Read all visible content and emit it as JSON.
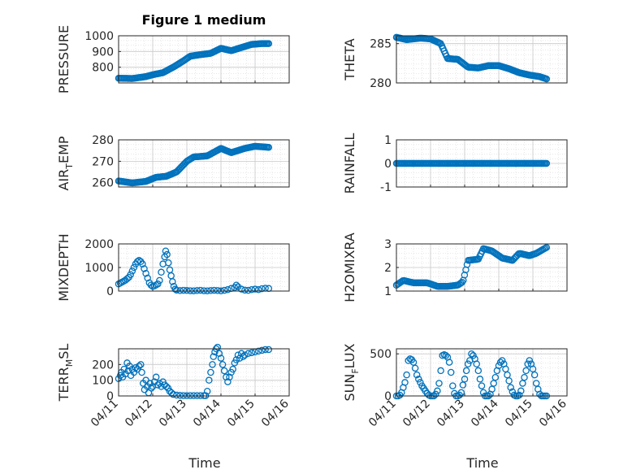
{
  "figure": {
    "title": "Figure 1 medium",
    "xlabel": "Time",
    "x_ticks": [
      "04/11",
      "04/12",
      "04/13",
      "04/14",
      "04/15",
      "04/16"
    ],
    "marker_color": "#0072BD"
  },
  "chart_data": [
    {
      "type": "scatter",
      "ylabel": "PRESSURE",
      "ylim": [
        700,
        1000
      ],
      "yticks": [
        {
          "v": 800,
          "t": "800"
        },
        {
          "v": 900,
          "t": "900"
        },
        {
          "v": 1000,
          "t": "1000"
        }
      ],
      "xlim": [
        0,
        5
      ],
      "keypoints": [
        [
          0,
          730
        ],
        [
          0.4,
          728
        ],
        [
          0.8,
          740
        ],
        [
          1.0,
          752
        ],
        [
          1.3,
          765
        ],
        [
          1.6,
          800
        ],
        [
          1.9,
          840
        ],
        [
          2.1,
          870
        ],
        [
          2.4,
          880
        ],
        [
          2.7,
          888
        ],
        [
          3.0,
          920
        ],
        [
          3.3,
          905
        ],
        [
          3.6,
          925
        ],
        [
          3.9,
          945
        ],
        [
          4.2,
          950
        ],
        [
          4.4,
          950
        ]
      ],
      "n": 130
    },
    {
      "type": "scatter",
      "ylabel": "THETA",
      "ylim": [
        280,
        286
      ],
      "yticks": [
        {
          "v": 280,
          "t": "280"
        },
        {
          "v": 285,
          "t": "285"
        }
      ],
      "xlim": [
        0,
        5
      ],
      "keypoints": [
        [
          0,
          285.8
        ],
        [
          0.3,
          285.5
        ],
        [
          0.7,
          285.7
        ],
        [
          1.0,
          285.6
        ],
        [
          1.3,
          285.0
        ],
        [
          1.5,
          283.1
        ],
        [
          1.8,
          283.0
        ],
        [
          2.1,
          282.0
        ],
        [
          2.4,
          281.9
        ],
        [
          2.7,
          282.2
        ],
        [
          3.0,
          282.2
        ],
        [
          3.3,
          281.8
        ],
        [
          3.6,
          281.3
        ],
        [
          3.9,
          281.0
        ],
        [
          4.2,
          280.8
        ],
        [
          4.4,
          280.5
        ]
      ],
      "n": 130
    },
    {
      "type": "scatter",
      "ylabel": "AIR_TEMP",
      "ylim": [
        258,
        280
      ],
      "yticks": [
        {
          "v": 260,
          "t": "260"
        },
        {
          "v": 270,
          "t": "270"
        },
        {
          "v": 280,
          "t": "280"
        }
      ],
      "xlim": [
        0,
        5
      ],
      "keypoints": [
        [
          0,
          260.8
        ],
        [
          0.4,
          259.9
        ],
        [
          0.8,
          260.6
        ],
        [
          1.1,
          262.5
        ],
        [
          1.4,
          263.0
        ],
        [
          1.7,
          265.0
        ],
        [
          2.0,
          270.0
        ],
        [
          2.2,
          272.0
        ],
        [
          2.6,
          272.5
        ],
        [
          3.0,
          276.0
        ],
        [
          3.3,
          274.0
        ],
        [
          3.7,
          276.0
        ],
        [
          4.0,
          277.0
        ],
        [
          4.4,
          276.5
        ]
      ],
      "n": 130
    },
    {
      "type": "scatter",
      "ylabel": "RAINFALL",
      "ylim": [
        -1,
        1
      ],
      "yticks": [
        {
          "v": -1,
          "t": "-1"
        },
        {
          "v": 0,
          "t": "0"
        },
        {
          "v": 1,
          "t": "1"
        }
      ],
      "xlim": [
        0,
        5
      ],
      "keypoints": [
        [
          0,
          0
        ],
        [
          4.4,
          0
        ]
      ],
      "n": 130
    },
    {
      "type": "scatter",
      "ylabel": "MIXDEPTH",
      "ylim": [
        0,
        2000
      ],
      "yticks": [
        {
          "v": 0,
          "t": "0"
        },
        {
          "v": 1000,
          "t": "1000"
        },
        {
          "v": 2000,
          "t": "2000"
        }
      ],
      "xlim": [
        0,
        5
      ],
      "points": [
        [
          0.0,
          300
        ],
        [
          0.05,
          340
        ],
        [
          0.1,
          380
        ],
        [
          0.15,
          420
        ],
        [
          0.2,
          460
        ],
        [
          0.25,
          520
        ],
        [
          0.3,
          580
        ],
        [
          0.35,
          700
        ],
        [
          0.4,
          850
        ],
        [
          0.45,
          1000
        ],
        [
          0.5,
          1150
        ],
        [
          0.55,
          1250
        ],
        [
          0.6,
          1300
        ],
        [
          0.65,
          1250
        ],
        [
          0.7,
          1150
        ],
        [
          0.75,
          950
        ],
        [
          0.8,
          750
        ],
        [
          0.85,
          550
        ],
        [
          0.9,
          350
        ],
        [
          0.95,
          250
        ],
        [
          1.0,
          200
        ],
        [
          1.05,
          220
        ],
        [
          1.1,
          260
        ],
        [
          1.15,
          300
        ],
        [
          1.2,
          450
        ],
        [
          1.25,
          800
        ],
        [
          1.3,
          1150
        ],
        [
          1.35,
          1450
        ],
        [
          1.38,
          1700
        ],
        [
          1.42,
          1550
        ],
        [
          1.46,
          1200
        ],
        [
          1.5,
          900
        ],
        [
          1.54,
          650
        ],
        [
          1.58,
          400
        ],
        [
          1.62,
          200
        ],
        [
          1.66,
          80
        ],
        [
          1.7,
          40
        ],
        [
          1.8,
          20
        ],
        [
          1.9,
          30
        ],
        [
          2.0,
          25
        ],
        [
          2.1,
          15
        ],
        [
          2.2,
          10
        ],
        [
          2.3,
          20
        ],
        [
          2.4,
          30
        ],
        [
          2.5,
          15
        ],
        [
          2.6,
          10
        ],
        [
          2.7,
          20
        ],
        [
          2.8,
          30
        ],
        [
          2.9,
          20
        ],
        [
          3.0,
          10
        ],
        [
          3.1,
          30
        ],
        [
          3.2,
          60
        ],
        [
          3.3,
          110
        ],
        [
          3.4,
          150
        ],
        [
          3.45,
          250
        ],
        [
          3.5,
          180
        ],
        [
          3.6,
          80
        ],
        [
          3.7,
          40
        ],
        [
          3.8,
          30
        ],
        [
          3.9,
          60
        ],
        [
          4.0,
          80
        ],
        [
          4.1,
          60
        ],
        [
          4.2,
          100
        ],
        [
          4.3,
          120
        ],
        [
          4.4,
          110
        ]
      ],
      "n": 0
    },
    {
      "type": "scatter",
      "ylabel": "H2OMIXRA",
      "ylim": [
        1,
        3
      ],
      "yticks": [
        {
          "v": 1,
          "t": "1"
        },
        {
          "v": 2,
          "t": "2"
        },
        {
          "v": 3,
          "t": "3"
        }
      ],
      "xlim": [
        0,
        5
      ],
      "keypoints": [
        [
          0,
          1.25
        ],
        [
          0.2,
          1.45
        ],
        [
          0.5,
          1.35
        ],
        [
          0.9,
          1.35
        ],
        [
          1.2,
          1.2
        ],
        [
          1.5,
          1.2
        ],
        [
          1.8,
          1.25
        ],
        [
          1.95,
          1.4
        ],
        [
          2.1,
          2.3
        ],
        [
          2.4,
          2.35
        ],
        [
          2.55,
          2.8
        ],
        [
          2.8,
          2.7
        ],
        [
          3.1,
          2.4
        ],
        [
          3.4,
          2.3
        ],
        [
          3.6,
          2.6
        ],
        [
          3.9,
          2.5
        ],
        [
          4.1,
          2.6
        ],
        [
          4.4,
          2.85
        ]
      ],
      "n": 120
    },
    {
      "type": "scatter",
      "ylabel": "TERR_MSL",
      "ylim": [
        0,
        300
      ],
      "yticks": [
        {
          "v": 0,
          "t": "0"
        },
        {
          "v": 100,
          "t": "100"
        },
        {
          "v": 200,
          "t": "200"
        }
      ],
      "xlim": [
        0,
        5
      ],
      "points": [
        [
          0.0,
          110
        ],
        [
          0.05,
          130
        ],
        [
          0.08,
          150
        ],
        [
          0.12,
          120
        ],
        [
          0.16,
          170
        ],
        [
          0.2,
          140
        ],
        [
          0.25,
          210
        ],
        [
          0.28,
          160
        ],
        [
          0.32,
          190
        ],
        [
          0.36,
          130
        ],
        [
          0.4,
          170
        ],
        [
          0.45,
          150
        ],
        [
          0.5,
          180
        ],
        [
          0.55,
          170
        ],
        [
          0.6,
          190
        ],
        [
          0.65,
          200
        ],
        [
          0.68,
          150
        ],
        [
          0.72,
          80
        ],
        [
          0.76,
          40
        ],
        [
          0.8,
          100
        ],
        [
          0.84,
          60
        ],
        [
          0.88,
          20
        ],
        [
          0.92,
          80
        ],
        [
          0.96,
          50
        ],
        [
          1.0,
          60
        ],
        [
          1.05,
          90
        ],
        [
          1.1,
          120
        ],
        [
          1.15,
          70
        ],
        [
          1.2,
          80
        ],
        [
          1.25,
          60
        ],
        [
          1.3,
          90
        ],
        [
          1.35,
          70
        ],
        [
          1.4,
          60
        ],
        [
          1.45,
          50
        ],
        [
          1.5,
          30
        ],
        [
          1.55,
          20
        ],
        [
          1.6,
          10
        ],
        [
          1.7,
          5
        ],
        [
          1.8,
          3
        ],
        [
          1.9,
          2
        ],
        [
          2.0,
          2
        ],
        [
          2.1,
          2
        ],
        [
          2.2,
          2
        ],
        [
          2.3,
          2
        ],
        [
          2.4,
          2
        ],
        [
          2.5,
          2
        ],
        [
          2.55,
          2
        ],
        [
          2.6,
          30
        ],
        [
          2.65,
          100
        ],
        [
          2.7,
          150
        ],
        [
          2.75,
          200
        ],
        [
          2.78,
          250
        ],
        [
          2.82,
          280
        ],
        [
          2.86,
          300
        ],
        [
          2.9,
          310
        ],
        [
          2.95,
          270
        ],
        [
          3.0,
          240
        ],
        [
          3.05,
          200
        ],
        [
          3.1,
          160
        ],
        [
          3.15,
          120
        ],
        [
          3.2,
          90
        ],
        [
          3.25,
          120
        ],
        [
          3.3,
          150
        ],
        [
          3.35,
          170
        ],
        [
          3.4,
          210
        ],
        [
          3.45,
          230
        ],
        [
          3.5,
          260
        ],
        [
          3.55,
          240
        ],
        [
          3.6,
          270
        ],
        [
          3.65,
          250
        ],
        [
          3.7,
          260
        ],
        [
          3.8,
          270
        ],
        [
          3.9,
          275
        ],
        [
          4.0,
          280
        ],
        [
          4.1,
          285
        ],
        [
          4.2,
          290
        ],
        [
          4.3,
          295
        ],
        [
          4.4,
          295
        ]
      ],
      "n": 0
    },
    {
      "type": "scatter",
      "ylabel": "SUN_FLUX",
      "ylim": [
        0,
        560
      ],
      "yticks": [
        {
          "v": 0,
          "t": "0"
        },
        {
          "v": 500,
          "t": "500"
        }
      ],
      "xlim": [
        0,
        5
      ],
      "points": [
        [
          0.0,
          0
        ],
        [
          0.05,
          0
        ],
        [
          0.1,
          10
        ],
        [
          0.15,
          40
        ],
        [
          0.2,
          100
        ],
        [
          0.25,
          160
        ],
        [
          0.3,
          250
        ],
        [
          0.35,
          420
        ],
        [
          0.4,
          440
        ],
        [
          0.45,
          430
        ],
        [
          0.5,
          400
        ],
        [
          0.55,
          330
        ],
        [
          0.6,
          250
        ],
        [
          0.65,
          200
        ],
        [
          0.7,
          160
        ],
        [
          0.75,
          120
        ],
        [
          0.8,
          90
        ],
        [
          0.85,
          60
        ],
        [
          0.9,
          30
        ],
        [
          0.95,
          10
        ],
        [
          1.0,
          0
        ],
        [
          1.05,
          0
        ],
        [
          1.1,
          0
        ],
        [
          1.15,
          20
        ],
        [
          1.2,
          60
        ],
        [
          1.25,
          150
        ],
        [
          1.3,
          300
        ],
        [
          1.35,
          480
        ],
        [
          1.4,
          490
        ],
        [
          1.45,
          480
        ],
        [
          1.5,
          460
        ],
        [
          1.55,
          400
        ],
        [
          1.6,
          280
        ],
        [
          1.65,
          120
        ],
        [
          1.7,
          30
        ],
        [
          1.75,
          0
        ],
        [
          1.8,
          0
        ],
        [
          1.85,
          10
        ],
        [
          1.9,
          40
        ],
        [
          1.95,
          130
        ],
        [
          2.0,
          200
        ],
        [
          2.05,
          300
        ],
        [
          2.1,
          380
        ],
        [
          2.15,
          420
        ],
        [
          2.2,
          500
        ],
        [
          2.25,
          480
        ],
        [
          2.3,
          440
        ],
        [
          2.35,
          380
        ],
        [
          2.4,
          300
        ],
        [
          2.45,
          200
        ],
        [
          2.5,
          120
        ],
        [
          2.55,
          40
        ],
        [
          2.6,
          0
        ],
        [
          2.65,
          0
        ],
        [
          2.7,
          0
        ],
        [
          2.75,
          20
        ],
        [
          2.8,
          80
        ],
        [
          2.85,
          150
        ],
        [
          2.9,
          220
        ],
        [
          2.95,
          300
        ],
        [
          3.0,
          360
        ],
        [
          3.05,
          400
        ],
        [
          3.1,
          420
        ],
        [
          3.15,
          380
        ],
        [
          3.2,
          320
        ],
        [
          3.25,
          250
        ],
        [
          3.3,
          180
        ],
        [
          3.35,
          100
        ],
        [
          3.4,
          50
        ],
        [
          3.45,
          10
        ],
        [
          3.5,
          0
        ],
        [
          3.55,
          0
        ],
        [
          3.6,
          10
        ],
        [
          3.65,
          60
        ],
        [
          3.7,
          150
        ],
        [
          3.75,
          220
        ],
        [
          3.8,
          300
        ],
        [
          3.85,
          380
        ],
        [
          3.9,
          420
        ],
        [
          3.95,
          380
        ],
        [
          4.0,
          320
        ],
        [
          4.05,
          250
        ],
        [
          4.1,
          150
        ],
        [
          4.15,
          80
        ],
        [
          4.2,
          20
        ],
        [
          4.25,
          0
        ],
        [
          4.3,
          0
        ],
        [
          4.35,
          0
        ],
        [
          4.4,
          0
        ]
      ],
      "n": 0
    }
  ]
}
